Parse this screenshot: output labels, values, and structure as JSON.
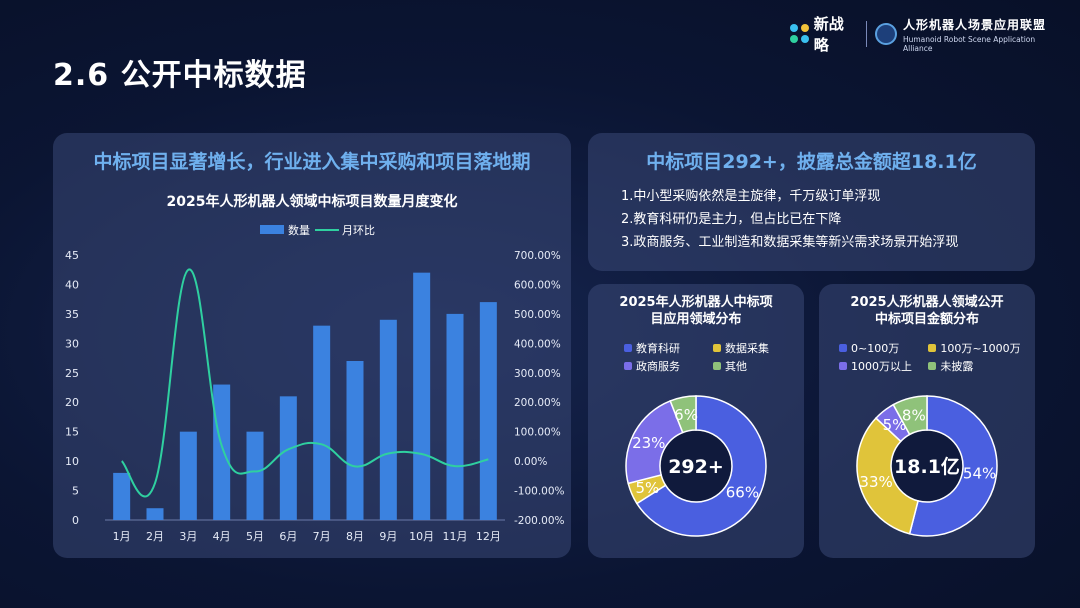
{
  "page": {
    "title": "2.6 公开中标数据"
  },
  "logos": {
    "brand": "新战略",
    "alliance_cn": "人形机器人场景应用联盟",
    "alliance_en": "Humanoid Robot Scene Application Alliance"
  },
  "left_panel": {
    "heading": "中标项目显著增长，行业进入集中采购和项目落地期"
  },
  "right_top": {
    "heading": "中标项目292+，披露总金额超18.1亿",
    "bullets": [
      "1.中小型采购依然是主旋律，千万级订单浮现",
      "2.教育科研仍是主力，但占比已在下降",
      "3.政商服务、工业制造和数据采集等新兴需求场景开始浮现"
    ]
  },
  "colors": {
    "bar": "#3b82e0",
    "line": "#2fd0a0",
    "slice_blue": "#4a5fe0",
    "slice_yellow": "#e0c43a",
    "slice_purple": "#7b6ee8",
    "slice_green": "#8fc27a"
  },
  "chart_data": [
    {
      "type": "bar",
      "title": "2025年人形机器人领域中标项目数量月度变化",
      "categories": [
        "1月",
        "2月",
        "3月",
        "4月",
        "5月",
        "6月",
        "7月",
        "8月",
        "9月",
        "10月",
        "11月",
        "12月"
      ],
      "series": [
        {
          "name": "数量",
          "type": "bar",
          "axis": "left",
          "values": [
            8,
            2,
            15,
            23,
            15,
            21,
            33,
            27,
            34,
            42,
            35,
            37
          ]
        },
        {
          "name": "月环比",
          "type": "line",
          "axis": "right",
          "values": [
            0,
            -75,
            650,
            53,
            -35,
            40,
            57,
            -18,
            26,
            24,
            -17,
            6
          ]
        }
      ],
      "ylim_left": [
        0,
        45
      ],
      "yticks_left": [
        "0",
        "5",
        "10",
        "15",
        "20",
        "25",
        "30",
        "35",
        "40",
        "45"
      ],
      "ylim_right": [
        -200,
        700
      ],
      "yticks_right": [
        "-200.00%",
        "-100.00%",
        "0.00%",
        "100.00%",
        "200.00%",
        "300.00%",
        "400.00%",
        "500.00%",
        "600.00%",
        "700.00%"
      ],
      "legend": "top"
    },
    {
      "type": "pie",
      "title_lines": [
        "2025年人形机器人中标项",
        "目应用领域分布"
      ],
      "center_label": "292+",
      "categories": [
        "教育科研",
        "数据采集",
        "政商服务",
        "其他"
      ],
      "values": [
        66,
        5,
        23,
        6
      ],
      "value_labels": [
        "66%",
        "5%",
        "23%",
        "6%"
      ]
    },
    {
      "type": "pie",
      "title_lines": [
        "2025人形机器人领域公开",
        "中标项目金额分布"
      ],
      "center_label": "18.1亿",
      "categories": [
        "0~100万",
        "100万~1000万",
        "1000万以上",
        "未披露"
      ],
      "values": [
        54,
        33,
        5,
        8
      ],
      "value_labels": [
        "54%",
        "33%",
        "5%",
        "8%"
      ]
    }
  ]
}
